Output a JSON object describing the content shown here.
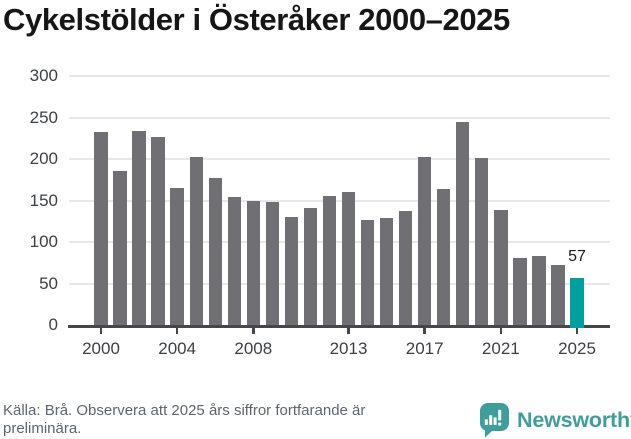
{
  "title": "Cykelstölder i Österåker 2000–2025",
  "chart_data": {
    "type": "bar",
    "title": "Cykelstölder i Österåker 2000–2025",
    "categories": [
      "2000",
      "2001",
      "2002",
      "2003",
      "2004",
      "2005",
      "2006",
      "2007",
      "2008",
      "2009",
      "2010",
      "2011",
      "2012",
      "2013",
      "2014",
      "2015",
      "2016",
      "2017",
      "2018",
      "2019",
      "2020",
      "2021",
      "2022",
      "2023",
      "2024",
      "2025"
    ],
    "values": [
      232,
      186,
      234,
      226,
      165,
      203,
      177,
      154,
      149,
      148,
      130,
      141,
      155,
      160,
      126,
      129,
      137,
      202,
      164,
      244,
      201,
      139,
      81,
      83,
      72,
      57
    ],
    "xlabel": "",
    "ylabel": "",
    "ylim": [
      0,
      300
    ],
    "yticks": [
      0,
      50,
      100,
      150,
      200,
      250,
      300
    ],
    "xtick_labels": [
      "2000",
      "2004",
      "2008",
      "2013",
      "2017",
      "2021",
      "2025"
    ],
    "grid": "horizontal",
    "legend_position": "none",
    "bar_color": "#6f6f74",
    "highlight_category": "2025",
    "highlight_color": "#00a0a0",
    "data_label": {
      "category": "2025",
      "text": "57"
    }
  },
  "footer": {
    "source": "Källa: Brå. Observera att 2025 års siffror fortfarande är preliminära.",
    "brand_name": "Newsworthy",
    "brand_color": "#3f9e9b",
    "logo_icon": "newsworthy-speech-bubble-chart-icon"
  }
}
